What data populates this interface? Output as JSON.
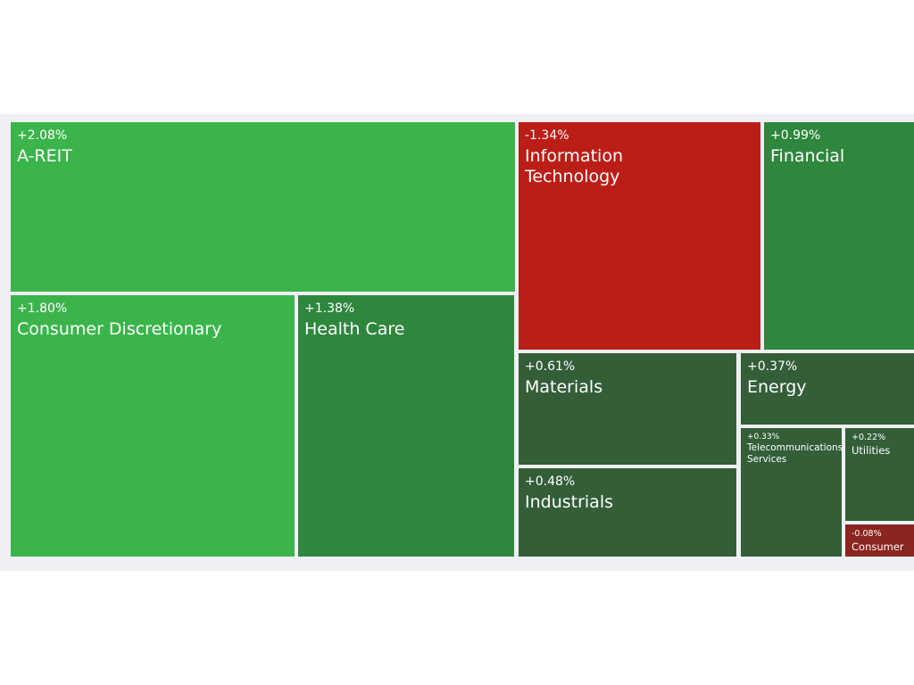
{
  "chart_data": {
    "type": "treemap",
    "sectors": [
      {
        "name": "A-REIT",
        "change": "+2.08%",
        "value": 2.08,
        "color": "#3bb54b"
      },
      {
        "name": "Consumer Discretionary",
        "change": "+1.80%",
        "value": 1.8,
        "color": "#3bb54b"
      },
      {
        "name": "Health Care",
        "change": "+1.38%",
        "value": 1.38,
        "color": "#2f863d"
      },
      {
        "name": "Information\nTechnology",
        "change": "-1.34%",
        "value": -1.34,
        "color": "#bb1e16"
      },
      {
        "name": "Financial",
        "change": "+0.99%",
        "value": 0.99,
        "color": "#2f863d"
      },
      {
        "name": "Materials",
        "change": "+0.61%",
        "value": 0.61,
        "color": "#335e38"
      },
      {
        "name": "Energy",
        "change": "+0.37%",
        "value": 0.37,
        "color": "#335e38"
      },
      {
        "name": "Industrials",
        "change": "+0.48%",
        "value": 0.48,
        "color": "#335e38"
      },
      {
        "name": "Telecommunications\nServices",
        "change": "+0.33%",
        "value": 0.33,
        "color": "#335e38"
      },
      {
        "name": "Utilities",
        "change": "+0.22%",
        "value": 0.22,
        "color": "#335e38"
      },
      {
        "name": "Consumer",
        "change": "-0.08%",
        "value": -0.08,
        "color": "#8b2520"
      }
    ]
  }
}
